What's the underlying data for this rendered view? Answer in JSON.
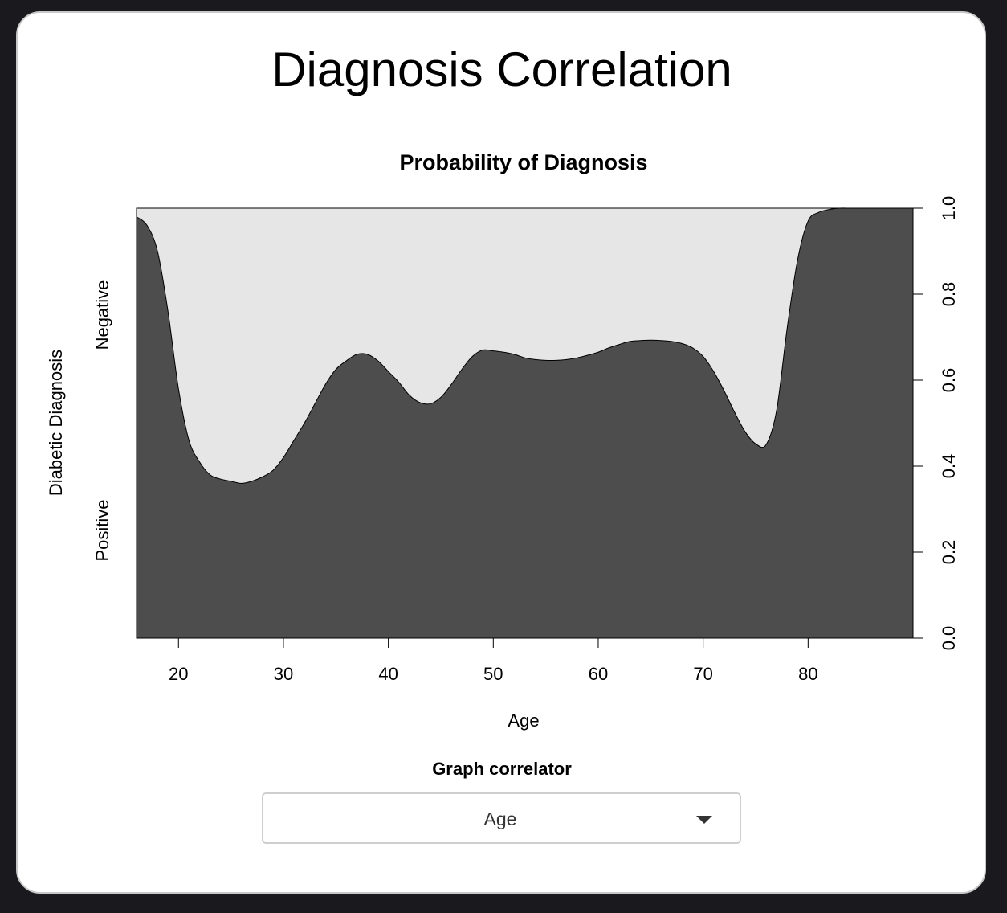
{
  "page": {
    "title": "Diagnosis Correlation"
  },
  "control": {
    "label": "Graph correlator",
    "selected": "Age"
  },
  "chart_data": {
    "type": "area",
    "title": "Probability of Diagnosis",
    "xlabel": "Age",
    "ylabel": "Diabetic Diagnosis",
    "y_category_labels": [
      "Negative",
      "Positive"
    ],
    "xlim": [
      16,
      90
    ],
    "ylim": [
      0,
      1
    ],
    "x_ticks": [
      20,
      30,
      40,
      50,
      60,
      70,
      80
    ],
    "y_ticks_right": [
      "0.0",
      "0.2",
      "0.4",
      "0.6",
      "0.8",
      "1.0"
    ],
    "colors": {
      "positive": "#4d4d4d",
      "negative": "#e6e6e6"
    },
    "series": [
      {
        "x": [
          16,
          17,
          18,
          19,
          20,
          21,
          22,
          23,
          24,
          25,
          26,
          27,
          28,
          29,
          30,
          31,
          32,
          33,
          34,
          35,
          36,
          37,
          38,
          39,
          40,
          41,
          42,
          43,
          44,
          45,
          46,
          47,
          48,
          49,
          50,
          51,
          52,
          53,
          54,
          55,
          56,
          57,
          58,
          59,
          60,
          61,
          62,
          63,
          64,
          65,
          66,
          67,
          68,
          69,
          70,
          71,
          72,
          73,
          74,
          75,
          76,
          77,
          78,
          79,
          80,
          81,
          82,
          83,
          84,
          85,
          86,
          87,
          88,
          89,
          90
        ],
        "values": [
          0.98,
          0.96,
          0.9,
          0.76,
          0.58,
          0.46,
          0.41,
          0.38,
          0.37,
          0.365,
          0.36,
          0.365,
          0.375,
          0.39,
          0.42,
          0.46,
          0.5,
          0.545,
          0.59,
          0.625,
          0.645,
          0.66,
          0.66,
          0.645,
          0.62,
          0.595,
          0.565,
          0.548,
          0.545,
          0.56,
          0.59,
          0.625,
          0.655,
          0.67,
          0.668,
          0.665,
          0.66,
          0.652,
          0.648,
          0.646,
          0.646,
          0.648,
          0.652,
          0.658,
          0.665,
          0.675,
          0.683,
          0.69,
          0.692,
          0.693,
          0.692,
          0.69,
          0.685,
          0.675,
          0.655,
          0.62,
          0.575,
          0.525,
          0.48,
          0.452,
          0.45,
          0.53,
          0.72,
          0.88,
          0.97,
          0.99,
          0.997,
          1.0,
          1.0,
          1.0,
          1.0,
          1.0,
          1.0,
          1.0,
          1.0
        ]
      }
    ]
  }
}
